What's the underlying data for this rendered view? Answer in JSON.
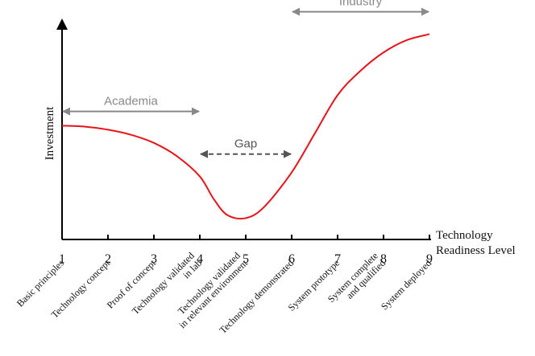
{
  "chart_data": {
    "type": "line",
    "xlabel": [
      "Technology",
      "Readiness Level"
    ],
    "ylabel": "Investment",
    "x": [
      1,
      2,
      3,
      4,
      5,
      6,
      7,
      8,
      9
    ],
    "xlim": [
      1,
      9
    ],
    "ylim": [
      0,
      1
    ],
    "category_labels": [
      [
        "Basic principles"
      ],
      [
        "Technology concept"
      ],
      [
        "Proof of concept"
      ],
      [
        "Technology validated",
        "in lab"
      ],
      [
        "Technology validated",
        "in relevant environment"
      ],
      [
        "Technology demonstrated"
      ],
      [
        "System prototype"
      ],
      [
        "System complete",
        "and qualified"
      ],
      [
        "System deployed"
      ]
    ],
    "series": [
      {
        "color": "#e8141b",
        "points": [
          [
            1.0,
            0.56
          ],
          [
            1.5,
            0.555
          ],
          [
            2.0,
            0.54
          ],
          [
            2.5,
            0.515
          ],
          [
            3.0,
            0.475
          ],
          [
            3.5,
            0.41
          ],
          [
            4.0,
            0.31
          ],
          [
            4.3,
            0.2
          ],
          [
            4.6,
            0.12
          ],
          [
            5.0,
            0.105
          ],
          [
            5.4,
            0.16
          ],
          [
            6.0,
            0.33
          ],
          [
            6.5,
            0.52
          ],
          [
            7.0,
            0.71
          ],
          [
            7.5,
            0.83
          ],
          [
            8.0,
            0.92
          ],
          [
            8.5,
            0.98
          ],
          [
            9.0,
            1.01
          ]
        ]
      }
    ],
    "annotations": [
      {
        "text": "Academia",
        "x_start": 1,
        "x_end": 4,
        "y": 0.63,
        "style": "solid",
        "color": "#888888"
      },
      {
        "text": "Gap",
        "x_start": 4,
        "x_end": 6,
        "y": 0.42,
        "style": "dashed",
        "color": "#555555"
      },
      {
        "text": "Industry",
        "x_start": 6,
        "x_end": 9,
        "y": 1.12,
        "style": "solid",
        "color": "#888888"
      }
    ]
  }
}
